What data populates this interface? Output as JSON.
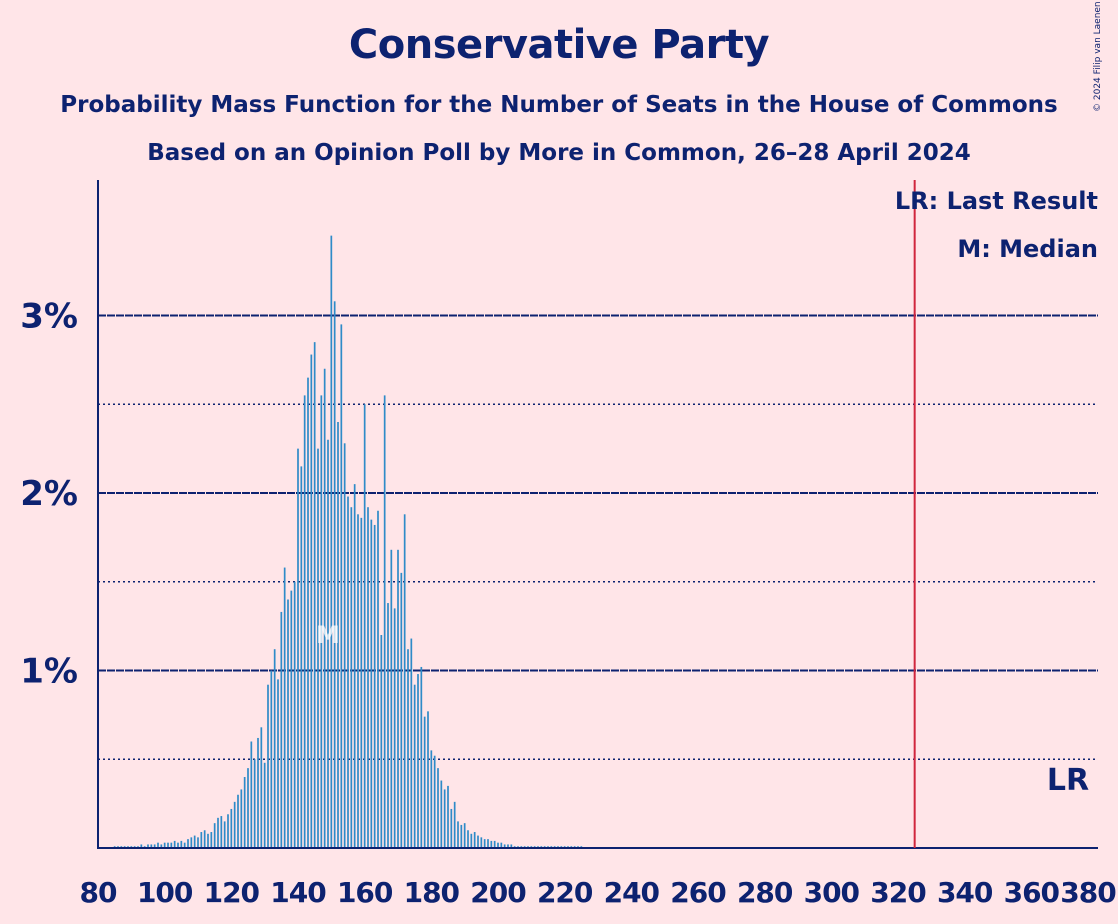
{
  "title": "Conservative Party",
  "subtitle": "Probability Mass Function for the Number of Seats in the House of Commons",
  "subtitle2": "Based on an Opinion Poll by More in Common, 26–28 April 2024",
  "copyright": "© 2024 Filip van Laenen",
  "colors": {
    "background": "#FFE5E8",
    "bars": "#2E8BC8",
    "text": "#0D2270",
    "last_result_line": "#D0263D"
  },
  "chart_data": {
    "type": "bar",
    "x_range": [
      80,
      380
    ],
    "y_range": [
      0,
      3.75
    ],
    "y_unit": "%",
    "x_ticks": [
      80,
      100,
      120,
      140,
      160,
      180,
      200,
      220,
      240,
      260,
      280,
      300,
      320,
      340,
      360,
      380
    ],
    "y_ticks_major": [
      1,
      2,
      3
    ],
    "y_tick_labels": [
      "1%",
      "2%",
      "3%"
    ],
    "y_ticks_minor": [
      0.5,
      1.5,
      2.5
    ],
    "legend": [
      "LR: Last Result",
      "M: Median"
    ],
    "last_result": {
      "seats": 325,
      "label": "LR"
    },
    "median": {
      "seats": 149,
      "label": "M",
      "probability": 1.2
    },
    "series": [
      {
        "x_start": 85,
        "values": [
          0.01,
          0.01,
          0.01,
          0.01,
          0.01,
          0.01,
          0.01,
          0.01,
          0.02,
          0.01,
          0.02,
          0.02,
          0.02,
          0.03,
          0.02,
          0.03,
          0.03,
          0.03,
          0.04,
          0.03,
          0.04,
          0.03,
          0.05,
          0.06,
          0.07,
          0.06,
          0.09,
          0.1,
          0.08,
          0.09,
          0.14,
          0.17,
          0.18,
          0.15,
          0.19,
          0.22,
          0.26,
          0.3,
          0.33,
          0.4,
          0.45,
          0.6,
          0.5,
          0.62,
          0.68,
          0.48,
          0.92,
          1.0,
          1.12,
          0.95,
          1.33,
          1.58,
          1.4,
          1.45,
          1.5,
          2.25,
          2.15,
          2.55,
          2.65,
          2.78,
          2.85,
          2.25,
          2.55,
          2.7,
          2.3,
          3.45,
          3.08,
          2.4,
          2.95,
          2.28,
          1.98,
          1.92,
          2.05,
          1.88,
          1.86,
          2.5,
          1.92,
          1.85,
          1.82,
          1.9,
          1.2,
          2.55,
          1.38,
          1.68,
          1.35,
          1.68,
          1.55,
          1.88,
          1.12,
          1.18,
          0.92,
          0.98,
          1.02,
          0.74,
          0.77,
          0.55,
          0.52,
          0.45,
          0.38,
          0.33,
          0.35,
          0.22,
          0.26,
          0.15,
          0.13,
          0.14,
          0.1,
          0.08,
          0.09,
          0.07,
          0.06,
          0.05,
          0.05,
          0.04,
          0.04,
          0.03,
          0.03,
          0.02,
          0.02,
          0.02,
          0.01,
          0.01,
          0.01,
          0.01,
          0.01,
          0.01,
          0.01,
          0.01,
          0.01,
          0.01,
          0.01,
          0.01,
          0.01,
          0.01,
          0.01,
          0.01,
          0.01,
          0.01,
          0.01,
          0.01,
          0.01
        ]
      }
    ]
  }
}
